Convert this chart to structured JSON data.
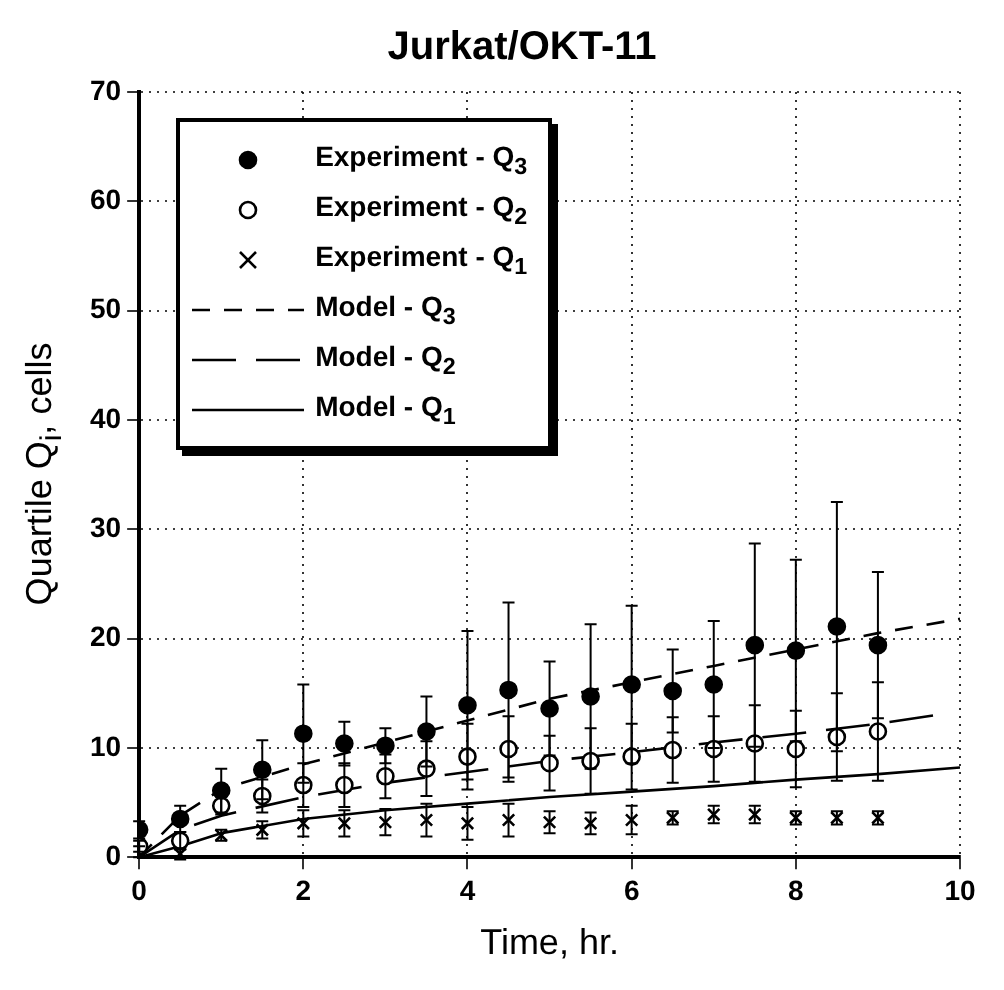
{
  "chart_data": {
    "type": "scatter",
    "title": "Jurkat/OKT-11",
    "xlabel": "Time, hr.",
    "ylabel": "Quartile Q$_{i}$, cells",
    "x": [
      0,
      0.5,
      1,
      1.5,
      2,
      2.5,
      3,
      3.5,
      4,
      4.5,
      5,
      5.5,
      6,
      6.5,
      7,
      7.5,
      8,
      8.5,
      9
    ],
    "series": [
      {
        "name": "Experiment - Q$_{3}$",
        "color": "#000000",
        "values": [
          2.5,
          3.5,
          6.1,
          8.0,
          11.3,
          10.4,
          10.2,
          11.5,
          13.9,
          15.3,
          13.6,
          14.7,
          15.8,
          15.2,
          15.8,
          19.4,
          18.9,
          21.1,
          19.4
        ],
        "errors": [
          0.8,
          1.2,
          2.0,
          2.7,
          4.5,
          2.0,
          1.6,
          3.2,
          6.8,
          8.0,
          4.3,
          6.6,
          7.2,
          3.8,
          5.8,
          9.3,
          8.3,
          11.4,
          6.7
        ]
      },
      {
        "name": "Experiment - Q$_{2}$",
        "color": "#000000",
        "values": [
          1.0,
          1.5,
          4.7,
          5.6,
          6.6,
          6.6,
          7.4,
          8.1,
          9.2,
          9.9,
          8.6,
          8.8,
          9.2,
          9.8,
          9.9,
          10.4,
          9.9,
          11.0,
          11.5
        ],
        "errors": [
          0.5,
          0.8,
          0.8,
          1.5,
          2,
          2,
          2,
          2.5,
          3,
          3,
          2.5,
          3,
          3,
          3,
          3,
          3.5,
          3.5,
          4,
          4.5
        ]
      },
      {
        "name": "Experiment - Q$_{1}$",
        "color": "#000000",
        "marker": "cross",
        "values": [
          0.5,
          0.3,
          2.0,
          2.5,
          3.1,
          3.1,
          3.2,
          3.4,
          3.1,
          3.4,
          3.2,
          3.1,
          3.4,
          3.6,
          3.9,
          3.9,
          3.6,
          3.6,
          3.6
        ],
        "errors": [
          0.5,
          0.5,
          0.5,
          0.8,
          1.2,
          1.2,
          1.2,
          1.5,
          1.5,
          1.5,
          1.0,
          1.0,
          1.3,
          0.6,
          0.8,
          0.8,
          0.6,
          0.6,
          0.6
        ]
      },
      {
        "name": "Model - Q$_{3}$",
        "type": "line",
        "color": "#000000",
        "line_style": "dashed",
        "x": [
          0,
          0.5,
          1,
          2,
          3,
          4,
          5,
          6,
          7,
          8,
          9,
          10
        ],
        "values": [
          0,
          3.8,
          6.2,
          8.5,
          10.5,
          12.5,
          14.5,
          16,
          17.5,
          19,
          20.5,
          21.8
        ]
      },
      {
        "name": "Model - Q$_{2}$",
        "type": "line",
        "color": "#000000",
        "line_style": "dashed",
        "x": [
          0,
          0.5,
          1,
          2,
          3,
          4,
          5,
          6,
          7,
          8,
          9,
          9.7
        ],
        "values": [
          0,
          2.5,
          3.8,
          5.5,
          6.8,
          7.8,
          8.8,
          9.6,
          10.5,
          11.3,
          12.2,
          13.0
        ]
      },
      {
        "name": "Model - Q$_{1}$",
        "type": "line",
        "color": "#000000",
        "line_style": "solid",
        "x": [
          0,
          0.5,
          1,
          2,
          3,
          4,
          5,
          6,
          7,
          8,
          9,
          10
        ],
        "values": [
          0,
          1.0,
          2.2,
          3.5,
          4.3,
          4.9,
          5.5,
          6.0,
          6.5,
          7.1,
          7.6,
          8.2
        ]
      }
    ],
    "xlim": [
      0,
      10
    ],
    "xticks": [
      0,
      2,
      4,
      6,
      8,
      10
    ],
    "ylim": [
      0,
      70
    ],
    "yticks": [
      0,
      10,
      20,
      30,
      40,
      50,
      60,
      70
    ],
    "grid": true,
    "legend": "top left"
  }
}
